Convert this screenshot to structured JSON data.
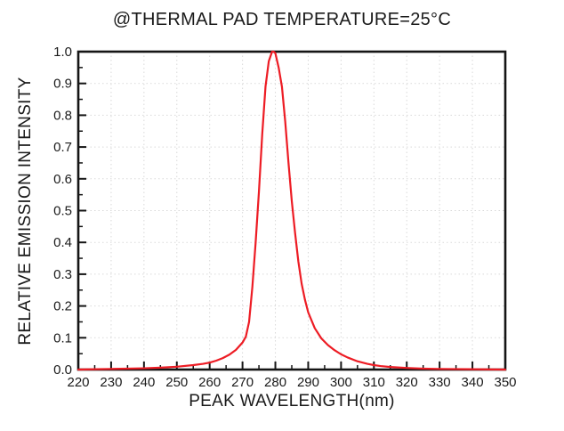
{
  "chart_data": {
    "type": "line",
    "title": "@THERMAL PAD TEMPERATURE=25°C",
    "xlabel": "PEAK WAVELENGTH(nm)",
    "ylabel": "RELATIVE EMISSION INTENSITY",
    "xlim": [
      220,
      350
    ],
    "ylim": [
      0.0,
      1.0
    ],
    "x_major_ticks": [
      220,
      230,
      240,
      250,
      260,
      270,
      280,
      290,
      300,
      310,
      320,
      330,
      340,
      350
    ],
    "x_minor_step": 5,
    "y_major_ticks": [
      0.0,
      0.1,
      0.2,
      0.3,
      0.4,
      0.5,
      0.6,
      0.7,
      0.8,
      0.9,
      1.0
    ],
    "y_tick_labels": [
      "0.0",
      "0.1",
      "0.2",
      "0.3",
      "0.4",
      "0.5",
      "0.6",
      "0.7",
      "0.8",
      "0.9",
      "1.0"
    ],
    "y_minor_step": 0.05,
    "grid": "dotted major gridlines, both axes",
    "legend_position": "none",
    "peak": {
      "wavelength_nm": 279.5,
      "intensity": 1.0
    },
    "colors": {
      "line": "#ed1c24",
      "axis": "#151515",
      "grid": "#d9d9d9",
      "text": "#1a1a1a",
      "background": "#ffffff"
    },
    "series": [
      {
        "name": "relative emission intensity",
        "color": "#ed1c24",
        "x": [
          220,
          225,
          230,
          235,
          240,
          245,
          250,
          255,
          258,
          260,
          262,
          264,
          266,
          268,
          270,
          271,
          272,
          273,
          274,
          275,
          276,
          277,
          278,
          279,
          279.5,
          280,
          281,
          282,
          283,
          284,
          285,
          286,
          287,
          288,
          289,
          290,
          291,
          292,
          294,
          296,
          298,
          300,
          302,
          305,
          308,
          310,
          312,
          315,
          320,
          325,
          330,
          340,
          350
        ],
        "y": [
          0.0,
          0.001,
          0.002,
          0.003,
          0.004,
          0.006,
          0.009,
          0.014,
          0.018,
          0.022,
          0.028,
          0.036,
          0.047,
          0.062,
          0.085,
          0.103,
          0.15,
          0.26,
          0.4,
          0.56,
          0.74,
          0.89,
          0.97,
          1.0,
          1.0,
          0.995,
          0.95,
          0.89,
          0.78,
          0.65,
          0.53,
          0.43,
          0.34,
          0.27,
          0.22,
          0.18,
          0.155,
          0.13,
          0.098,
          0.077,
          0.061,
          0.048,
          0.038,
          0.026,
          0.018,
          0.014,
          0.011,
          0.008,
          0.005,
          0.003,
          0.002,
          0.001,
          0.0
        ]
      }
    ]
  }
}
